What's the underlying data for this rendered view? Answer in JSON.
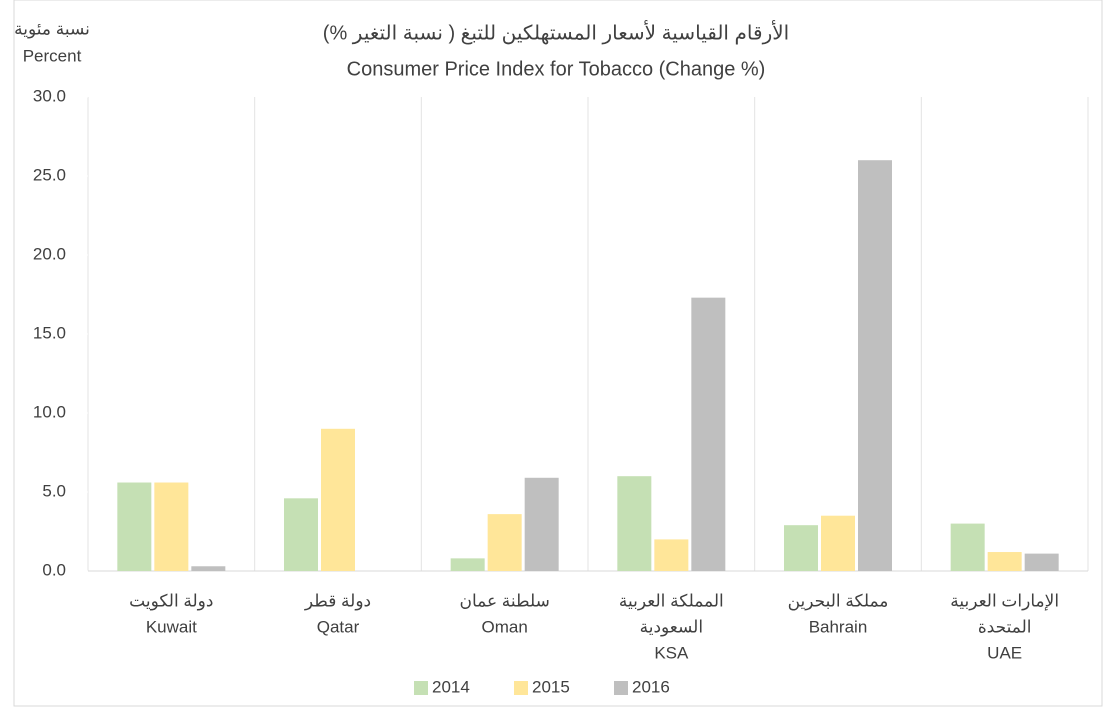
{
  "chart_data": {
    "type": "bar",
    "title": "الأرقام القياسية لأسعار المستهلكين للتبغ ( نسبة التغير %)",
    "subtitle": "Consumer Price Index for Tobacco (Change %)",
    "ylabel": [
      "نسبة مئوية",
      "Percent"
    ],
    "categories": [
      [
        "دولة الكويت",
        "Kuwait"
      ],
      [
        "دولة قطر",
        "Qatar"
      ],
      [
        "سلطنة عمان",
        "Oman"
      ],
      [
        "المملكة العربية",
        "السعودية",
        "KSA"
      ],
      [
        "مملكة البحرين",
        "Bahrain"
      ],
      [
        "الإمارات العربية",
        "المتحدة",
        "UAE"
      ]
    ],
    "series": [
      {
        "name": "2014",
        "color": "#c5e0b4",
        "values": [
          5.6,
          4.6,
          0.8,
          6.0,
          2.9,
          3.0
        ]
      },
      {
        "name": "2015",
        "color": "#ffe699",
        "values": [
          5.6,
          9.0,
          3.6,
          2.0,
          3.5,
          1.2
        ]
      },
      {
        "name": "2016",
        "color": "#bfbfbf",
        "values": [
          0.3,
          null,
          5.9,
          17.3,
          26.0,
          1.1
        ]
      }
    ],
    "ylim": [
      0,
      30
    ],
    "yticks": [
      {
        "value": 0,
        "label": "0.0"
      },
      {
        "value": 5,
        "label": "5.0"
      },
      {
        "value": 10,
        "label": "10.0"
      },
      {
        "value": 15,
        "label": "15.0"
      },
      {
        "value": 20,
        "label": "20.0"
      },
      {
        "value": 25,
        "label": "25.0"
      },
      {
        "value": 30,
        "label": "30.0"
      }
    ],
    "legend": "bottom"
  }
}
